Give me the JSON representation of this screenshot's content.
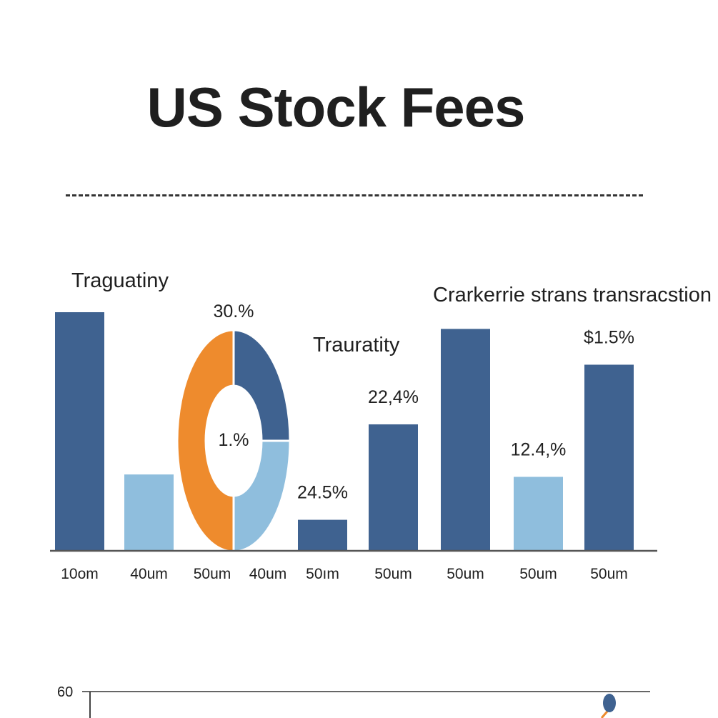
{
  "title": "US Stock Fees",
  "chart_data": {
    "type": "bar",
    "title": "US Stock Fees",
    "ylim": [
      0,
      50
    ],
    "annotations": {
      "left": "Traguatiny",
      "middle": "Trauratity",
      "right": "Crarkerrie strans transracstion"
    },
    "bars": [
      {
        "category": "10om",
        "value": 50,
        "label": "",
        "color": "#3f6290"
      },
      {
        "category": "40um",
        "value": 16,
        "label": "",
        "color": "#8fbedd"
      },
      {
        "category": "50ım",
        "value": 6.5,
        "label": "24.5%",
        "color": "#3f6290"
      },
      {
        "category": "50um",
        "value": 26.5,
        "label": "22,4%",
        "color": "#3f6290"
      },
      {
        "category": "50um",
        "value": 46.5,
        "label": "",
        "color": "#3f6290"
      },
      {
        "category": "50um",
        "value": 15.5,
        "label": "12.4,%",
        "color": "#8fbedd"
      },
      {
        "category": "50um",
        "value": 39,
        "label": "$1.5%",
        "color": "#3f6290"
      }
    ],
    "donut": {
      "top_label": "30.%",
      "center_label": "1.%",
      "left_category": "50um",
      "right_category": "40um",
      "slices": [
        {
          "name": "orange",
          "value": 50,
          "color": "#ee8b2d"
        },
        {
          "name": "dark blue",
          "value": 25,
          "color": "#3f6290"
        },
        {
          "name": "light blue",
          "value": 25,
          "color": "#8fbedd"
        }
      ]
    },
    "secondary": {
      "y_tick": "60",
      "point_color": "#3f6290",
      "accent_color": "#ee8b2d"
    }
  }
}
